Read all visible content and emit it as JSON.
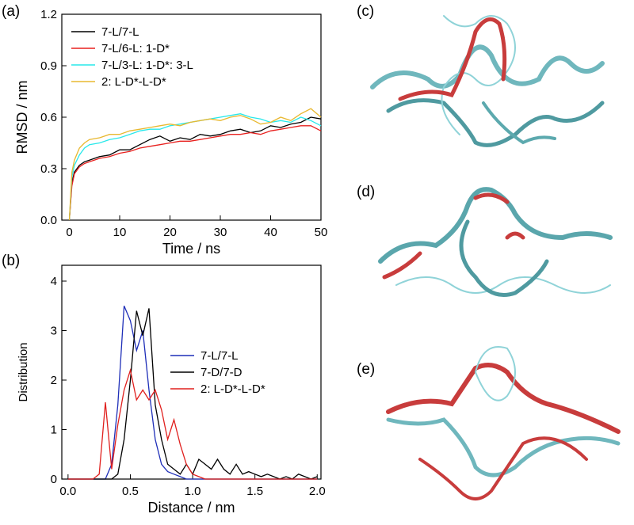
{
  "chart_data": [
    {
      "type": "line",
      "panel_label": "(a)",
      "xlabel": "Time / ns",
      "ylabel": "RMSD / nm",
      "x": [
        0,
        0.5,
        1,
        2,
        3,
        4,
        6,
        8,
        10,
        12,
        14,
        16,
        18,
        20,
        22,
        24,
        26,
        28,
        30,
        32,
        34,
        36,
        38,
        40,
        42,
        44,
        46,
        48,
        50
      ],
      "series": [
        {
          "name": "7-L/7-L",
          "color": "#000000",
          "values": [
            0,
            0.22,
            0.28,
            0.32,
            0.34,
            0.35,
            0.37,
            0.38,
            0.41,
            0.41,
            0.44,
            0.47,
            0.49,
            0.46,
            0.48,
            0.47,
            0.5,
            0.49,
            0.5,
            0.52,
            0.53,
            0.51,
            0.52,
            0.55,
            0.54,
            0.56,
            0.57,
            0.6,
            0.59
          ]
        },
        {
          "name": "7-L/6-L: 1-D*",
          "color": "#e8201e",
          "values": [
            0,
            0.2,
            0.27,
            0.31,
            0.33,
            0.34,
            0.36,
            0.37,
            0.39,
            0.4,
            0.42,
            0.43,
            0.44,
            0.45,
            0.46,
            0.46,
            0.47,
            0.48,
            0.49,
            0.5,
            0.5,
            0.51,
            0.5,
            0.52,
            0.53,
            0.54,
            0.55,
            0.55,
            0.52
          ]
        },
        {
          "name": "7-L/3-L: 1-D*: 3-L",
          "color": "#28e8ea",
          "values": [
            0,
            0.25,
            0.32,
            0.38,
            0.42,
            0.44,
            0.45,
            0.47,
            0.48,
            0.5,
            0.52,
            0.53,
            0.53,
            0.55,
            0.56,
            0.57,
            0.58,
            0.59,
            0.6,
            0.61,
            0.62,
            0.6,
            0.59,
            0.57,
            0.58,
            0.57,
            0.6,
            0.58,
            0.55
          ]
        },
        {
          "name": "2: L-D*-L-D*",
          "color": "#e8b830",
          "values": [
            0,
            0.28,
            0.35,
            0.42,
            0.45,
            0.47,
            0.48,
            0.5,
            0.5,
            0.52,
            0.53,
            0.54,
            0.55,
            0.56,
            0.55,
            0.57,
            0.58,
            0.59,
            0.58,
            0.6,
            0.61,
            0.59,
            0.56,
            0.57,
            0.6,
            0.58,
            0.62,
            0.65,
            0.6
          ]
        }
      ],
      "xlim": [
        -1.5,
        50
      ],
      "xticks": [
        0,
        10,
        20,
        30,
        40,
        50
      ],
      "ylim": [
        0,
        1.2
      ],
      "yticks": [
        {
          "value": 0,
          "label": "0.0"
        },
        0.3,
        0.6,
        0.9,
        1.2
      ],
      "legend": "upper left"
    },
    {
      "type": "line",
      "panel_label": "(b)",
      "xlabel": "Distance / nm",
      "ylabel": "Distribution",
      "x": [
        0,
        0.05,
        0.1,
        0.15,
        0.2,
        0.25,
        0.3,
        0.35,
        0.4,
        0.45,
        0.5,
        0.55,
        0.6,
        0.65,
        0.7,
        0.75,
        0.8,
        0.85,
        0.9,
        0.95,
        1,
        1.05,
        1.1,
        1.15,
        1.2,
        1.25,
        1.3,
        1.35,
        1.4,
        1.45,
        1.5,
        1.55,
        1.6,
        1.65,
        1.7,
        1.75,
        1.8,
        1.85,
        1.9,
        1.95,
        2
      ],
      "series": [
        {
          "name": "7-L/7-L",
          "color": "#1f2fb8",
          "values": [
            0,
            0,
            0,
            0,
            0,
            0,
            0,
            0.3,
            1.5,
            3.5,
            3.2,
            2.6,
            3.0,
            1.8,
            0.8,
            0.3,
            0.15,
            0.1,
            0.05,
            0,
            0,
            0,
            0,
            0,
            0,
            0,
            0,
            0,
            0,
            0,
            0,
            0,
            0,
            0,
            0,
            0,
            0,
            0,
            0,
            0,
            0
          ]
        },
        {
          "name": "7-D/7-D",
          "color": "#000000",
          "values": [
            0,
            0,
            0,
            0,
            0,
            0,
            0,
            0,
            0.1,
            0.8,
            2.0,
            3.4,
            2.9,
            3.45,
            1.5,
            0.8,
            0.3,
            0.2,
            0.1,
            0.3,
            0.1,
            0.4,
            0.3,
            0.2,
            0.4,
            0.2,
            0.1,
            0.3,
            0.1,
            0.15,
            0.1,
            0.05,
            0.1,
            0.05,
            0,
            0.05,
            0,
            0.1,
            0.05,
            0,
            0.05
          ]
        },
        {
          "name": "2: L-D*-L-D*",
          "color": "#e0201e",
          "values": [
            0,
            0,
            0,
            0,
            0,
            0.1,
            1.55,
            0.2,
            1.1,
            1.8,
            2.2,
            1.6,
            1.8,
            1.6,
            1.8,
            1.4,
            0.8,
            1.2,
            0.7,
            0.3,
            0.1,
            0.05,
            0,
            0,
            0,
            0,
            0,
            0,
            0,
            0,
            0,
            0,
            0,
            0,
            0,
            0,
            0,
            0,
            0,
            0,
            0
          ]
        }
      ],
      "xlim": [
        -0.05,
        2.03
      ],
      "xticks": [
        {
          "value": 0,
          "label": "0.0"
        },
        0.5,
        {
          "value": 1,
          "label": "1.0"
        },
        1.5,
        {
          "value": 2,
          "label": "2.0"
        }
      ],
      "ylim": [
        0,
        4.32
      ],
      "yticks": [
        0,
        1,
        2,
        3,
        4
      ],
      "legend": "center right"
    }
  ],
  "images": [
    {
      "label": "(c)"
    },
    {
      "label": "(d)"
    },
    {
      "label": "(e)"
    }
  ]
}
